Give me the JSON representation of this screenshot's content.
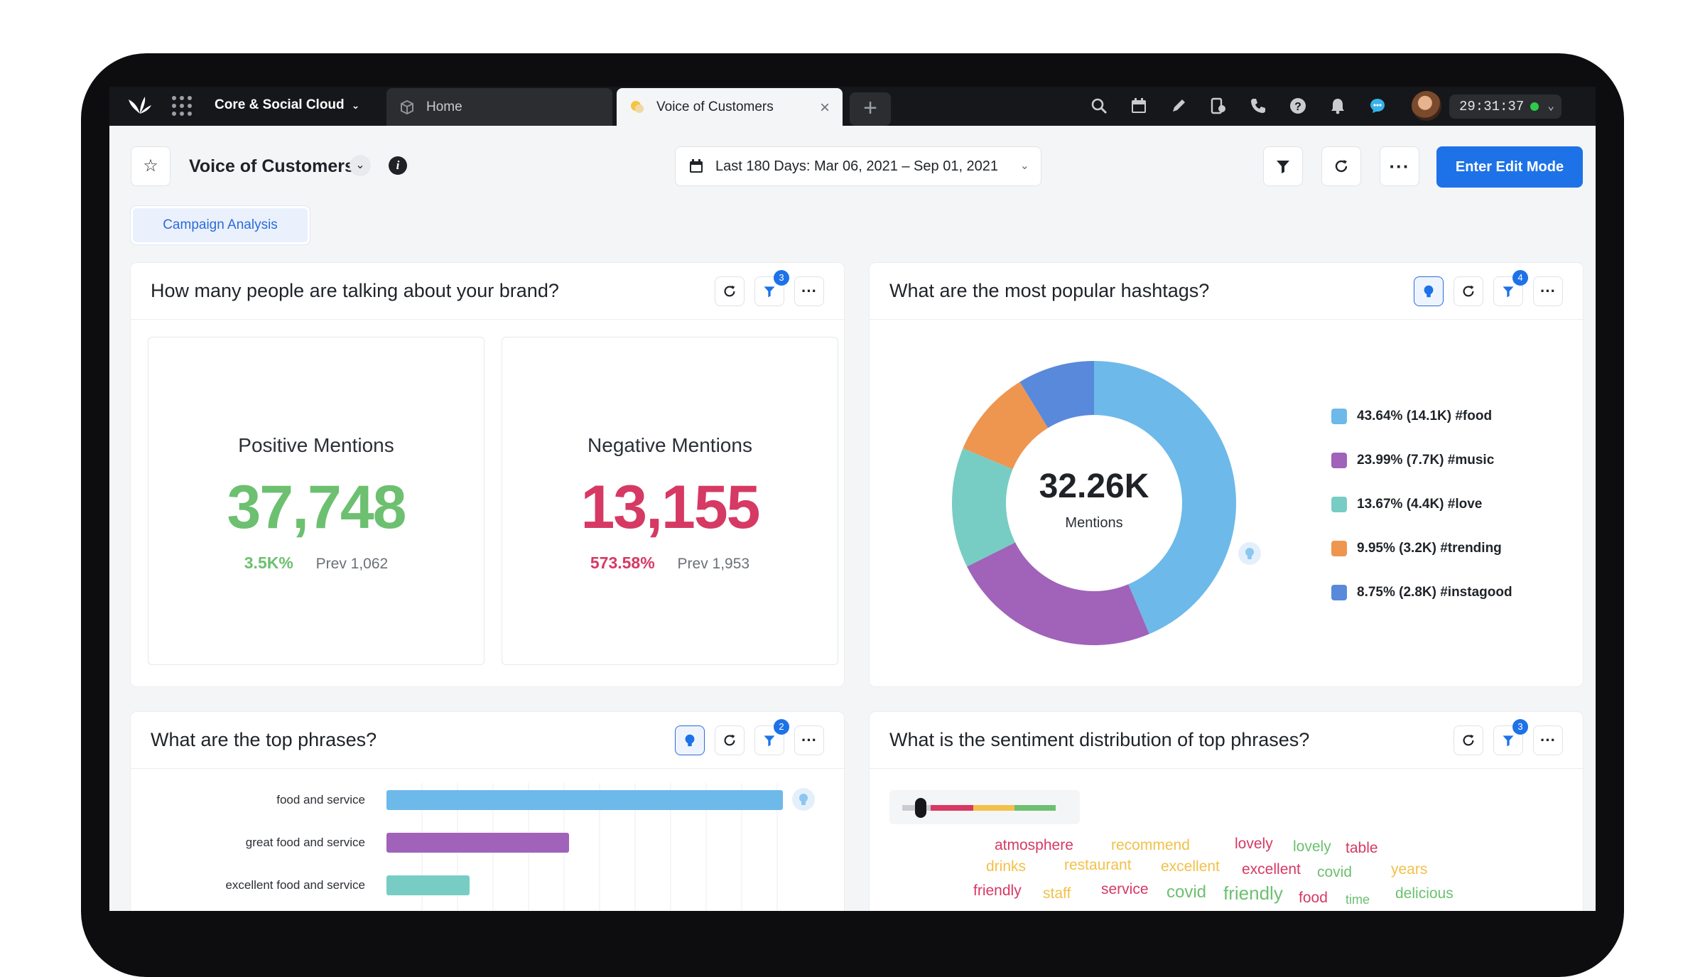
{
  "topnav": {
    "workspace": "Core & Social Cloud",
    "tabs": [
      {
        "label": "Home"
      },
      {
        "label": "Voice of Customers"
      }
    ],
    "new_tab": "+",
    "clock": "29:31:37",
    "icons": [
      "search-icon",
      "calendar-icon",
      "pencil-icon",
      "compose-icon",
      "phone-icon",
      "help-icon",
      "bell-icon",
      "chat-icon"
    ]
  },
  "header": {
    "title": "Voice of Customers",
    "date_range": "Last 180 Days: Mar 06, 2021 – Sep 01, 2021",
    "edit_button": "Enter Edit Mode",
    "chip": "Campaign Analysis"
  },
  "widgets": {
    "brand": {
      "title": "How many people are talking about your brand?",
      "filter_badge": "3",
      "positive": {
        "label": "Positive Mentions",
        "value": "37,748",
        "change": "3.5K%",
        "prev": "Prev 1,062",
        "color": "#6cc070"
      },
      "negative": {
        "label": "Negative Mentions",
        "value": "13,155",
        "change": "573.58%",
        "prev": "Prev 1,953",
        "color": "#d63964"
      }
    },
    "hashtags": {
      "title": "What are the most popular hashtags?",
      "filter_badge": "4",
      "center_value": "32.26K",
      "center_label": "Mentions",
      "legend": [
        "43.64% (14.1K) #food",
        "23.99% (7.7K) #music",
        "13.67% (4.4K) #love",
        "9.95% (3.2K) #trending",
        "8.75% (2.8K) #instagood"
      ]
    },
    "phrases": {
      "title": "What are the top phrases?",
      "filter_badge": "2",
      "rows": [
        "food and service",
        "great food and service",
        "excellent food and service"
      ]
    },
    "sentiment": {
      "title": "What is the sentiment distribution of top phrases?",
      "filter_badge": "3",
      "words": [
        "atmosphere",
        "recommend",
        "lovely",
        "lovely",
        "table",
        "drinks",
        "restaurant",
        "excellent",
        "excellent",
        "covid",
        "years",
        "friendly",
        "staff",
        "service",
        "covid",
        "friendly",
        "food",
        "time",
        "delicious"
      ]
    }
  },
  "chart_data": {
    "type": "pie",
    "categories": [
      "#food",
      "#music",
      "#love",
      "#trending",
      "#instagood"
    ],
    "values": [
      43.64,
      23.99,
      13.67,
      9.95,
      8.75
    ],
    "counts": [
      "14.1K",
      "7.7K",
      "4.4K",
      "3.2K",
      "2.8K"
    ],
    "colors": [
      "#6db9ea",
      "#a063b9",
      "#77cdc3",
      "#ee9550",
      "#5889db"
    ],
    "title": "What are the most popular hashtags?",
    "total": "32.26K",
    "legend": "right"
  },
  "phrase_chart": {
    "type": "bar",
    "orientation": "horizontal",
    "categories": [
      "food and service",
      "great food and service",
      "excellent food and service"
    ],
    "relative_values": [
      1.0,
      0.46,
      0.21
    ],
    "colors": [
      "#6db9ea",
      "#a063b9",
      "#77cdc3"
    ]
  }
}
